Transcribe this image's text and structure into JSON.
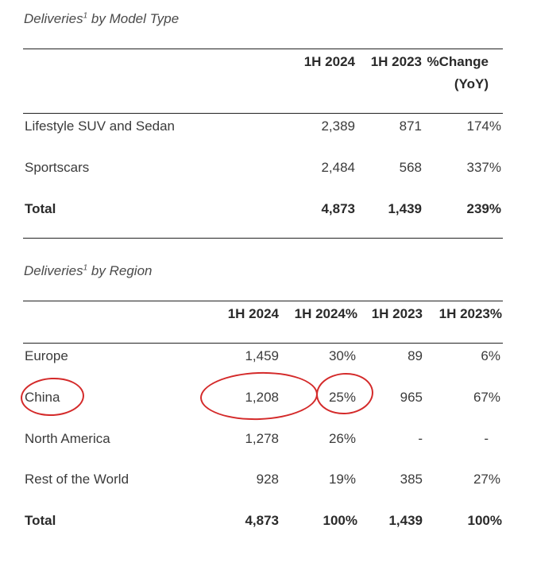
{
  "model_section": {
    "caption": "Deliveries",
    "footnote": "1",
    "caption_suffix": " by Model Type",
    "headers": {
      "h2024": "1H 2024",
      "h2023": "1H 2023",
      "change_line1": "%Change",
      "change_line2": "(YoY)"
    },
    "rows": [
      {
        "label": "Lifestyle SUV and Sedan",
        "h2024": "2,389",
        "h2023": "871",
        "change": "174%"
      },
      {
        "label": "Sportscars",
        "h2024": "2,484",
        "h2023": "568",
        "change": "337%"
      },
      {
        "label": "Total",
        "h2024": "4,873",
        "h2023": "1,439",
        "change": "239%"
      }
    ]
  },
  "region_section": {
    "caption": "Deliveries",
    "footnote": "1",
    "caption_suffix": " by Region",
    "headers": {
      "h2024": "1H 2024",
      "h2024pct": "1H 2024%",
      "h2023": "1H 2023",
      "h2023pct": "1H 2023%"
    },
    "rows": [
      {
        "label": "Europe",
        "h2024": "1,459",
        "h2024pct": "30%",
        "h2023": "89",
        "h2023pct": "6%"
      },
      {
        "label": "China",
        "h2024": "1,208",
        "h2024pct": "25%",
        "h2023": "965",
        "h2023pct": "67%"
      },
      {
        "label": "North America",
        "h2024": "1,278",
        "h2024pct": "26%",
        "h2023": "-",
        "h2023pct": "-"
      },
      {
        "label": "Rest of the World",
        "h2024": "928",
        "h2024pct": "19%",
        "h2023": "385",
        "h2023pct": "27%"
      },
      {
        "label": "Total",
        "h2024": "4,873",
        "h2024pct": "100%",
        "h2023": "1,439",
        "h2023pct": "100%"
      }
    ]
  },
  "annotations": {
    "circle_color": "#d42a2a",
    "circled_cells": [
      "China",
      "1,208",
      "25%"
    ]
  }
}
